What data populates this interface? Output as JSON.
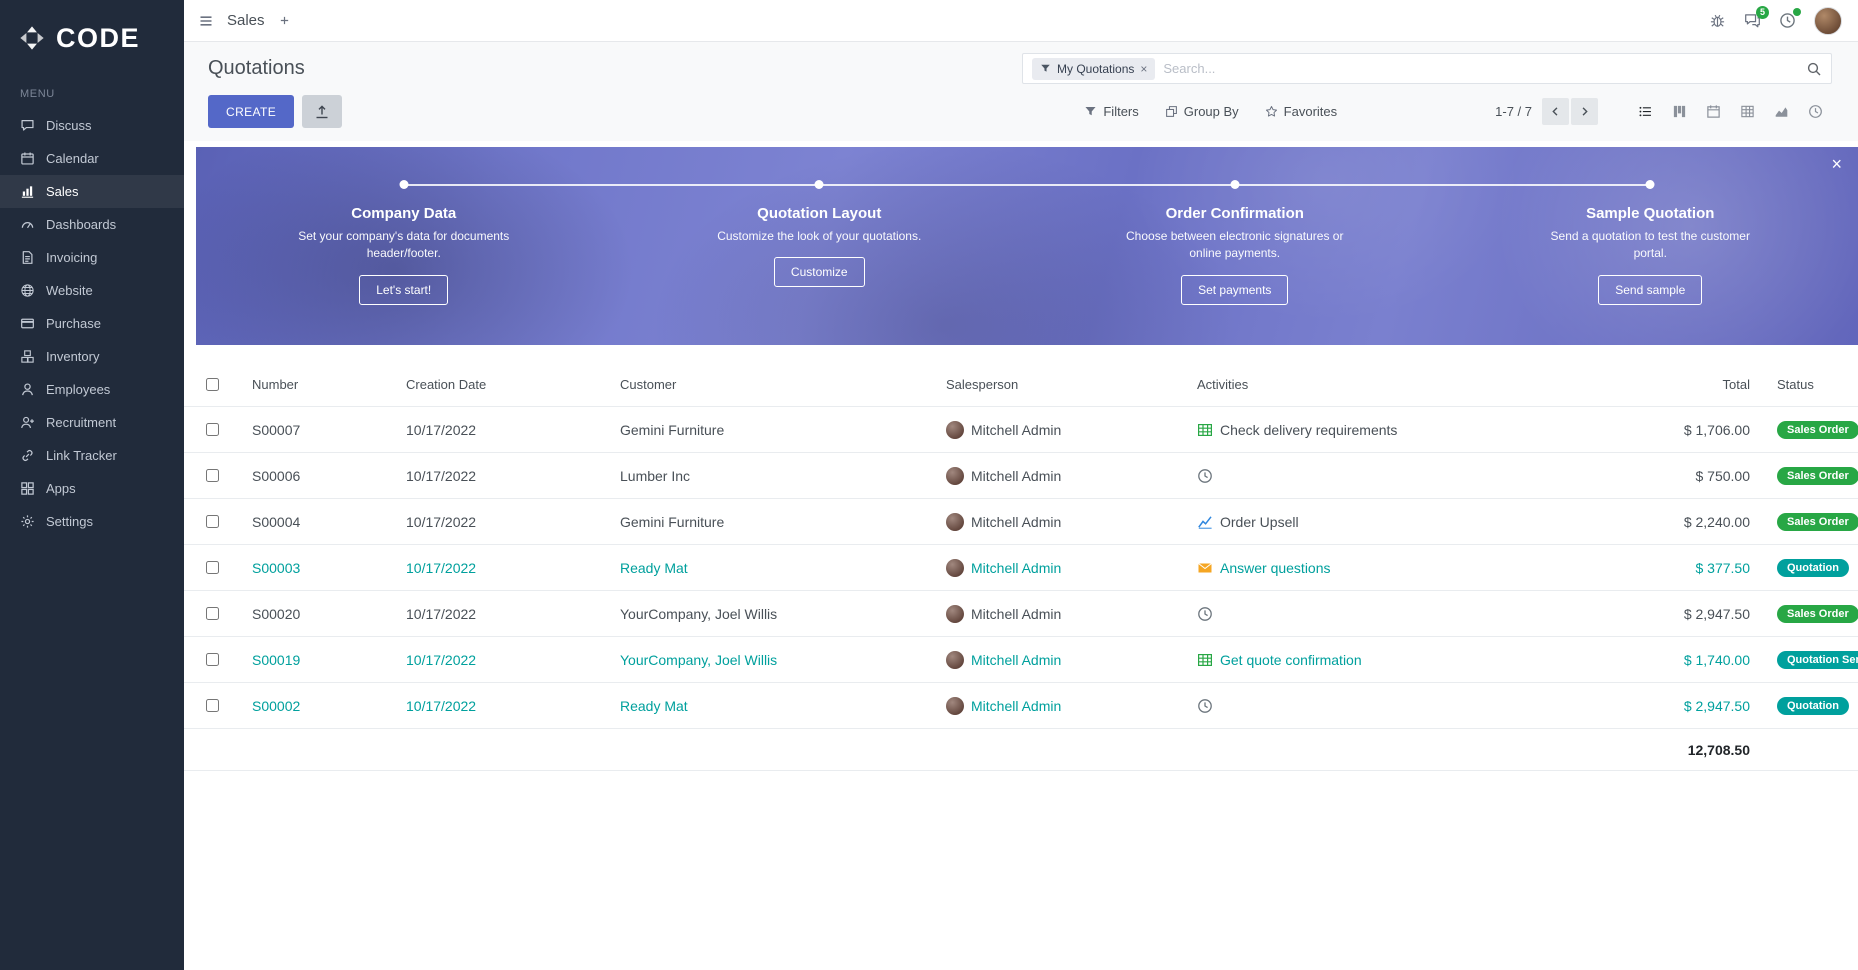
{
  "colors": {
    "accent": "#5468c8",
    "sidebar_bg": "#212b3b",
    "green": "#28a745",
    "teal": "#00a09d"
  },
  "brand": {
    "name": "CODE"
  },
  "topbar": {
    "app_name": "Sales",
    "chat_badge": "5"
  },
  "sidebar": {
    "menu_label": "MENU",
    "items": [
      {
        "label": "Discuss",
        "icon": "discuss-icon",
        "active": false
      },
      {
        "label": "Calendar",
        "icon": "calendar-icon",
        "active": false
      },
      {
        "label": "Sales",
        "icon": "sales-icon",
        "active": true
      },
      {
        "label": "Dashboards",
        "icon": "dashboards-icon",
        "active": false
      },
      {
        "label": "Invoicing",
        "icon": "invoicing-icon",
        "active": false
      },
      {
        "label": "Website",
        "icon": "website-icon",
        "active": false
      },
      {
        "label": "Purchase",
        "icon": "purchase-icon",
        "active": false
      },
      {
        "label": "Inventory",
        "icon": "inventory-icon",
        "active": false
      },
      {
        "label": "Employees",
        "icon": "employees-icon",
        "active": false
      },
      {
        "label": "Recruitment",
        "icon": "recruitment-icon",
        "active": false
      },
      {
        "label": "Link Tracker",
        "icon": "link-icon",
        "active": false
      },
      {
        "label": "Apps",
        "icon": "apps-icon",
        "active": false
      },
      {
        "label": "Settings",
        "icon": "settings-icon",
        "active": false
      }
    ]
  },
  "control_panel": {
    "title": "Quotations",
    "create_label": "CREATE",
    "filters_label": "Filters",
    "group_by_label": "Group By",
    "favorites_label": "Favorites",
    "pager_text": "1-7 / 7",
    "search": {
      "chip_label": "My Quotations",
      "chip_close": "×",
      "placeholder": "Search..."
    }
  },
  "view_switcher": [
    {
      "icon": "view-list-icon",
      "active": true
    },
    {
      "icon": "view-kanban-icon",
      "active": false
    },
    {
      "icon": "view-calendar-icon",
      "active": false
    },
    {
      "icon": "view-pivot-icon",
      "active": false
    },
    {
      "icon": "view-graph-icon",
      "active": false
    },
    {
      "icon": "view-activity-icon",
      "active": false
    }
  ],
  "banner": {
    "close_label": "×",
    "steps": [
      {
        "title": "Company Data",
        "desc": "Set your company's data for documents header/footer.",
        "button": "Let's start!"
      },
      {
        "title": "Quotation Layout",
        "desc": "Customize the look of your quotations.",
        "button": "Customize"
      },
      {
        "title": "Order Confirmation",
        "desc": "Choose between electronic signatures or online payments.",
        "button": "Set payments"
      },
      {
        "title": "Sample Quotation",
        "desc": "Send a quotation to test the customer portal.",
        "button": "Send sample"
      }
    ]
  },
  "table": {
    "headers": {
      "number": "Number",
      "date": "Creation Date",
      "customer": "Customer",
      "salesperson": "Salesperson",
      "activities": "Activities",
      "total": "Total",
      "status": "Status"
    },
    "rows": [
      {
        "number": "S00007",
        "date": "10/17/2022",
        "customer": "Gemini Furniture",
        "salesperson": "Mitchell Admin",
        "activity_icon": "spreadsheet-icon",
        "activity": "Check delivery requirements",
        "total": "$ 1,706.00",
        "status": "Sales Order",
        "status_color": "green",
        "highlight": false
      },
      {
        "number": "S00006",
        "date": "10/17/2022",
        "customer": "Lumber Inc",
        "salesperson": "Mitchell Admin",
        "activity_icon": "clock-icon",
        "activity": "",
        "total": "$ 750.00",
        "status": "Sales Order",
        "status_color": "green",
        "highlight": false
      },
      {
        "number": "S00004",
        "date": "10/17/2022",
        "customer": "Gemini Furniture",
        "salesperson": "Mitchell Admin",
        "activity_icon": "chart-icon",
        "activity": "Order Upsell",
        "total": "$ 2,240.00",
        "status": "Sales Order",
        "status_color": "green",
        "highlight": false
      },
      {
        "number": "S00003",
        "date": "10/17/2022",
        "customer": "Ready Mat",
        "salesperson": "Mitchell Admin",
        "activity_icon": "envelope-icon",
        "activity": "Answer questions",
        "total": "$ 377.50",
        "status": "Quotation",
        "status_color": "teal",
        "highlight": true
      },
      {
        "number": "S00020",
        "date": "10/17/2022",
        "customer": "YourCompany, Joel Willis",
        "salesperson": "Mitchell Admin",
        "activity_icon": "clock-icon",
        "activity": "",
        "total": "$ 2,947.50",
        "status": "Sales Order",
        "status_color": "green",
        "highlight": false
      },
      {
        "number": "S00019",
        "date": "10/17/2022",
        "customer": "YourCompany, Joel Willis",
        "salesperson": "Mitchell Admin",
        "activity_icon": "spreadsheet-icon",
        "activity": "Get quote confirmation",
        "total": "$ 1,740.00",
        "status": "Quotation Sent",
        "status_color": "teal",
        "highlight": true
      },
      {
        "number": "S00002",
        "date": "10/17/2022",
        "customer": "Ready Mat",
        "salesperson": "Mitchell Admin",
        "activity_icon": "clock-icon",
        "activity": "",
        "total": "$ 2,947.50",
        "status": "Quotation",
        "status_color": "teal",
        "highlight": true
      }
    ],
    "footer_total": "12,708.50"
  }
}
